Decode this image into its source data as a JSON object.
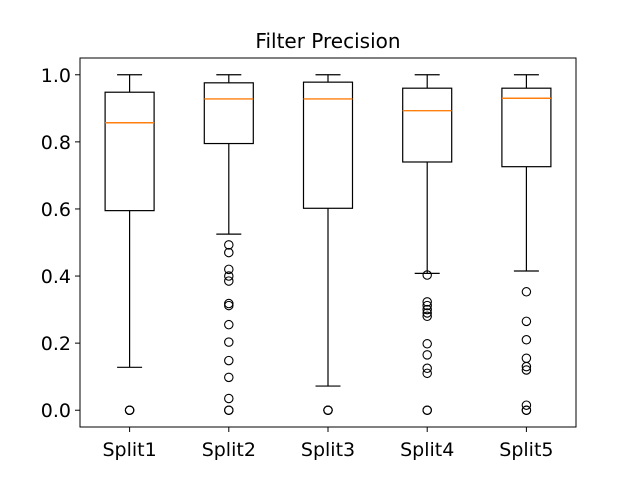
{
  "chart_data": {
    "type": "box",
    "title": "Filter Precision",
    "xlabel": "",
    "ylabel": "",
    "ylim": [
      -0.05,
      1.05
    ],
    "yticks": [
      0.0,
      0.2,
      0.4,
      0.6,
      0.8,
      1.0
    ],
    "ytick_labels": [
      "0.0",
      "0.2",
      "0.4",
      "0.6",
      "0.8",
      "1.0"
    ],
    "grid": false,
    "colors": {
      "box": "#000000",
      "median": "#ff7f0e",
      "whisker": "#000000",
      "outlier": "#000000"
    },
    "categories": [
      "Split1",
      "Split2",
      "Split3",
      "Split4",
      "Split5"
    ],
    "boxes": [
      {
        "q1": 0.595,
        "median": 0.857,
        "q3": 0.948,
        "whisker_low": 0.128,
        "whisker_high": 1.0,
        "outliers": [
          0.0,
          0.0,
          0.0
        ]
      },
      {
        "q1": 0.795,
        "median": 0.928,
        "q3": 0.976,
        "whisker_low": 0.525,
        "whisker_high": 1.0,
        "outliers": [
          0.493,
          0.47,
          0.42,
          0.4,
          0.385,
          0.318,
          0.312,
          0.255,
          0.203,
          0.148,
          0.098,
          0.035,
          0.0,
          0.0
        ]
      },
      {
        "q1": 0.602,
        "median": 0.928,
        "q3": 0.978,
        "whisker_low": 0.072,
        "whisker_high": 1.0,
        "outliers": [
          0.0,
          0.0,
          0.0
        ]
      },
      {
        "q1": 0.74,
        "median": 0.893,
        "q3": 0.96,
        "whisker_low": 0.408,
        "whisker_high": 1.0,
        "outliers": [
          0.403,
          0.323,
          0.312,
          0.3,
          0.29,
          0.28,
          0.198,
          0.165,
          0.125,
          0.11,
          0.0,
          0.0
        ]
      },
      {
        "q1": 0.726,
        "median": 0.93,
        "q3": 0.96,
        "whisker_low": 0.415,
        "whisker_high": 1.0,
        "outliers": [
          0.353,
          0.265,
          0.21,
          0.155,
          0.13,
          0.12,
          0.015,
          0.0,
          0.0
        ]
      }
    ]
  }
}
